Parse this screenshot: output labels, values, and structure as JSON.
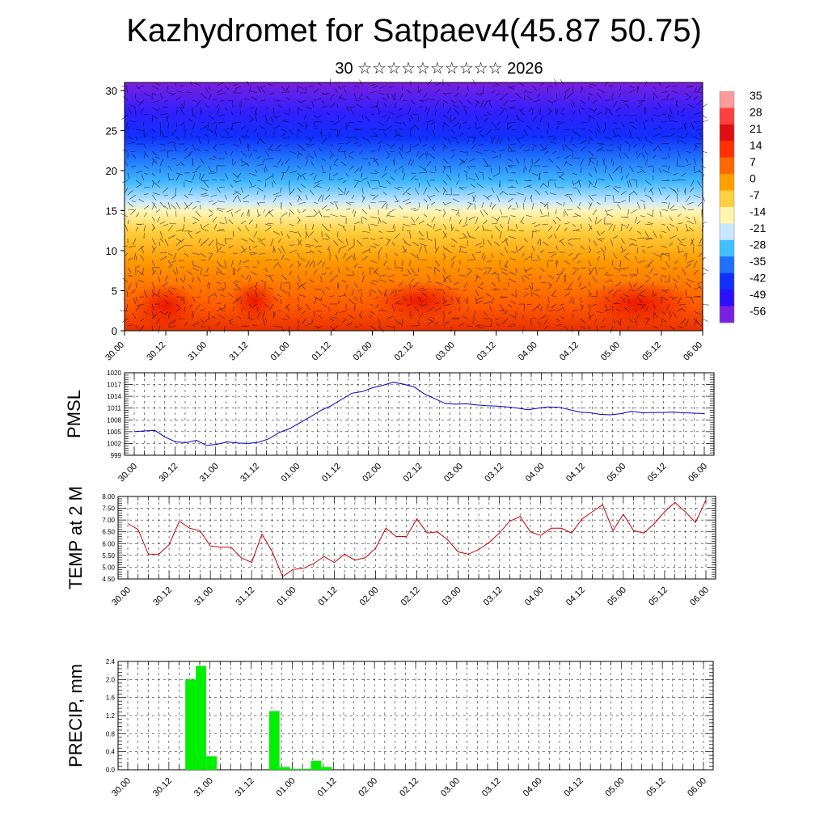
{
  "header": {
    "title": "Kazhydromet for Satpaev4(45.87 50.75)",
    "subtitle": "30 ☆☆☆☆☆☆☆☆☆☆ 2026"
  },
  "chart_data": [
    {
      "type": "heatmap",
      "title": "",
      "yticks": [
        0,
        5,
        10,
        15,
        20,
        25,
        30
      ],
      "ylim": [
        0,
        31
      ],
      "xticks": [
        "30.00",
        "30.12",
        "31.00",
        "31.12",
        "01.00",
        "01.12",
        "02.00",
        "02.12",
        "03.00",
        "03.12",
        "04.00",
        "04.12",
        "05.00",
        "05.12",
        "06.00"
      ],
      "colorbar": {
        "labels": [
          "35",
          "28",
          "21",
          "14",
          "7",
          "0",
          "-7",
          "-14",
          "-21",
          "-28",
          "-35",
          "-42",
          "-49",
          "-56"
        ],
        "colors": [
          "#ff9a9a",
          "#ff4040",
          "#e01010",
          "#ff3000",
          "#ff6a00",
          "#ffa000",
          "#ffd040",
          "#fff6b0",
          "#c8e8ff",
          "#40c0ff",
          "#2070ff",
          "#1030ff",
          "#2a10ff",
          "#7a20e0"
        ]
      },
      "overlay": "wind-vectors"
    },
    {
      "type": "line",
      "ylabel": "PMSL",
      "ylim": [
        999,
        1020
      ],
      "yticks": [
        999,
        1002,
        1005,
        1008,
        1011,
        1014,
        1017,
        1020
      ],
      "xticks": [
        "30.00",
        "30.12",
        "31.00",
        "31.12",
        "01.00",
        "01.12",
        "02.00",
        "02.12",
        "03.00",
        "03.12",
        "04.00",
        "04.12",
        "05.00",
        "05.12",
        "06.00"
      ],
      "color": "#0000cc",
      "values": [
        1005.0,
        1005.2,
        1005.3,
        1003.6,
        1002.4,
        1002.2,
        1002.8,
        1001.5,
        1001.8,
        1002.4,
        1002.1,
        1002.0,
        1002.3,
        1003.2,
        1004.8,
        1005.8,
        1007.3,
        1008.8,
        1010.4,
        1011.6,
        1013.2,
        1014.8,
        1015.2,
        1016.2,
        1016.8,
        1017.6,
        1017.1,
        1016.4,
        1014.6,
        1013.4,
        1012.2,
        1012.0,
        1012.1,
        1011.8,
        1011.6,
        1011.5,
        1011.3,
        1011.0,
        1010.6,
        1011.0,
        1011.3,
        1011.2,
        1010.6,
        1010.0,
        1009.8,
        1009.4,
        1009.3,
        1009.6,
        1010.2,
        1009.8,
        1009.9,
        1009.9,
        1010.0,
        1009.8,
        1009.7,
        1009.6
      ]
    },
    {
      "type": "line",
      "ylabel": "TEMP at 2 M",
      "ylim": [
        4.5,
        8.0
      ],
      "yticks": [
        "4.50",
        "5.00",
        "5.50",
        "6.00",
        "6.50",
        "7.00",
        "7.50",
        "8.00"
      ],
      "xticks": [
        "30.00",
        "30.12",
        "31.00",
        "31.12",
        "01.00",
        "01.12",
        "02.00",
        "02.12",
        "03.00",
        "03.12",
        "04.00",
        "04.12",
        "05.00",
        "05.12",
        "06.00"
      ],
      "color": "#cc0000",
      "values": [
        6.85,
        6.6,
        5.55,
        5.55,
        5.95,
        6.95,
        6.65,
        6.55,
        5.9,
        5.85,
        5.85,
        5.4,
        5.2,
        6.4,
        5.65,
        4.6,
        4.9,
        4.95,
        5.15,
        5.45,
        5.2,
        5.55,
        5.3,
        5.4,
        5.8,
        6.65,
        6.3,
        6.3,
        7.05,
        6.45,
        6.5,
        6.15,
        5.65,
        5.55,
        5.75,
        6.05,
        6.45,
        6.95,
        7.15,
        6.5,
        6.35,
        6.65,
        6.65,
        6.45,
        7.05,
        7.35,
        7.65,
        6.55,
        7.25,
        6.55,
        6.45,
        6.85,
        7.35,
        7.75,
        7.35,
        6.9,
        7.85
      ]
    },
    {
      "type": "bar",
      "ylabel": "PRECIP, mm",
      "ylim": [
        0,
        2.4
      ],
      "yticks": [
        "0.0",
        "0.4",
        "0.8",
        "1.2",
        "1.6",
        "2.0",
        "2.4"
      ],
      "xticks": [
        "30.00",
        "30.12",
        "31.00",
        "31.12",
        "01.00",
        "01.12",
        "02.00",
        "02.12",
        "03.00",
        "03.12",
        "04.00",
        "04.12",
        "05.00",
        "05.12",
        "06.00"
      ],
      "color": "#00ee00",
      "values": [
        0,
        0,
        0,
        0,
        0,
        0,
        2.0,
        2.3,
        0.3,
        0,
        0,
        0,
        0,
        0,
        1.3,
        0.06,
        0.02,
        0.02,
        0.2,
        0.06,
        0,
        0,
        0,
        0,
        0,
        0,
        0,
        0,
        0,
        0,
        0,
        0,
        0,
        0,
        0,
        0,
        0,
        0,
        0,
        0,
        0,
        0,
        0,
        0,
        0,
        0,
        0,
        0,
        0,
        0,
        0,
        0,
        0,
        0,
        0,
        0
      ]
    }
  ]
}
